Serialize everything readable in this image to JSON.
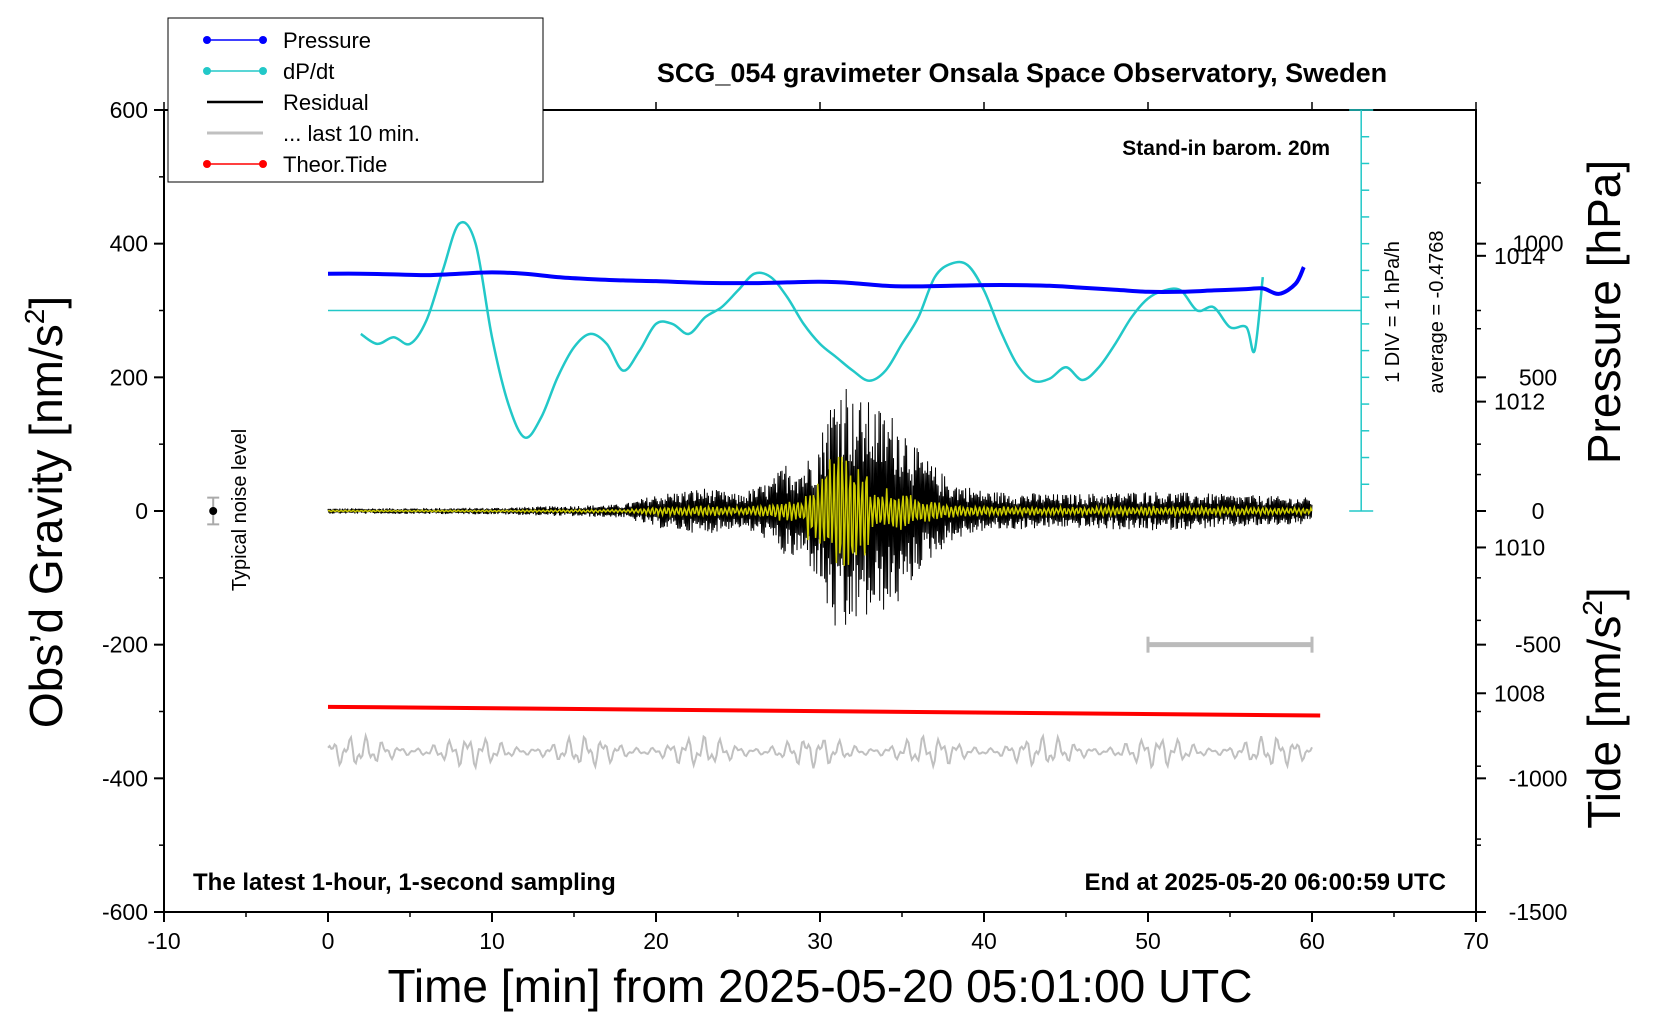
{
  "chart_data": {
    "type": "line",
    "title": "SCG_054 gravimeter Onsala Space Observatory, Sweden",
    "xlabel": "Time [min] from 2025-05-20 05:01:00 UTC",
    "ylabel_left": "Obs’d Gravity [nm/s",
    "ylabel_left_sup": "2",
    "ylabel_left_end": "]",
    "ylabel_right_top": "Pressure [hPa]",
    "ylabel_right_bottom": "Tide [nm/s",
    "ylabel_right_bottom_sup": "2",
    "ylabel_right_bottom_end": "]",
    "xlim": [
      -10,
      70
    ],
    "ylim_left": [
      -600,
      600
    ],
    "xticks": [
      -10,
      0,
      10,
      20,
      30,
      40,
      50,
      60,
      70
    ],
    "xtick_labels": [
      "-10",
      "0",
      "10",
      "20",
      "30",
      "40",
      "50",
      "60",
      "70"
    ],
    "yticks_left": [
      -600,
      -400,
      -200,
      0,
      200,
      400,
      600
    ],
    "ytick_labels_left": [
      "-600",
      "-400",
      "-200",
      "0",
      "200",
      "400",
      "600"
    ],
    "pressure_axis": {
      "ticks": [
        1008,
        1010,
        1012,
        1014
      ],
      "labels": [
        "1008",
        "1010",
        "1012",
        "1014"
      ]
    },
    "tide_axis": {
      "ticks": [
        -1500,
        -1000,
        -500,
        0,
        500,
        1000
      ],
      "labels": [
        "-1500",
        "-1000",
        "-500",
        "0",
        "500",
        "1000"
      ]
    },
    "annotations": {
      "barometer": "Stand-in barom. 20m",
      "div_label": "1 DIV = 1 hPa/h",
      "average_label": "average = -0.4768",
      "noise_label": "Typical noise level",
      "bottom_left": "The latest 1-hour, 1-second sampling",
      "bottom_right": "End at 2025-05-20 06:00:59 UTC"
    },
    "legend": [
      {
        "label": "Pressure",
        "color": "#0000ff",
        "marker": true
      },
      {
        "label": "dP/dt",
        "color": "#22c8c8",
        "marker": true
      },
      {
        "label": "Residual",
        "color": "#000000",
        "marker": false
      },
      {
        "label": "... last 10 min.",
        "color": "#c0c0c0",
        "marker": false
      },
      {
        "label": "Theor.Tide",
        "color": "#ff0000",
        "marker": true
      }
    ],
    "legend_position": "top-left",
    "colors": {
      "pressure": "#0000ff",
      "dpdt": "#22c8c8",
      "residual": "#000000",
      "last10": "#c0c0c0",
      "tide": "#ff0000",
      "overlay": "#cccc00"
    },
    "series": [
      {
        "name": "Pressure",
        "axis": "gravity-equivalent nm/s2",
        "x": [
          0,
          2,
          4,
          6,
          8,
          10,
          12,
          14,
          16,
          18,
          20,
          22,
          24,
          26,
          28,
          30,
          32,
          34,
          36,
          38,
          40,
          42,
          44,
          46,
          48,
          50,
          52,
          54,
          56,
          57,
          58,
          59,
          59.5
        ],
        "y": [
          355,
          355,
          354,
          353,
          355,
          357,
          355,
          350,
          347,
          345,
          344,
          342,
          341,
          341,
          342,
          343,
          341,
          337,
          336,
          337,
          338,
          338,
          337,
          334,
          331,
          328,
          328,
          330,
          332,
          333,
          325,
          340,
          365
        ]
      },
      {
        "name": "dP/dt",
        "axis": "gravity-equivalent nm/s2",
        "x": [
          2,
          3,
          4,
          5,
          6,
          7,
          8,
          9,
          10,
          11,
          12,
          13,
          14,
          15,
          16,
          17,
          18,
          19,
          20,
          21,
          22,
          23,
          24,
          25,
          26,
          27,
          28,
          29,
          30,
          31,
          32,
          33,
          34,
          35,
          36,
          37,
          38,
          39,
          40,
          41,
          42,
          43,
          44,
          45,
          46,
          47,
          48,
          49,
          50,
          51,
          52,
          53,
          54,
          55,
          56,
          56.5,
          57
        ],
        "y": [
          265,
          250,
          260,
          250,
          285,
          360,
          430,
          400,
          260,
          160,
          110,
          140,
          200,
          245,
          265,
          250,
          210,
          240,
          280,
          280,
          265,
          290,
          305,
          330,
          355,
          350,
          320,
          280,
          250,
          230,
          210,
          195,
          210,
          250,
          290,
          350,
          370,
          368,
          330,
          270,
          220,
          195,
          198,
          215,
          196,
          215,
          250,
          290,
          318,
          330,
          330,
          300,
          305,
          275,
          275,
          240,
          350
        ]
      },
      {
        "name": "dP/dt baseline",
        "x": [
          0,
          63
        ],
        "y": [
          300,
          300
        ]
      },
      {
        "name": "Residual",
        "envelope_x": [
          0,
          10,
          18,
          20,
          23,
          25,
          27,
          28,
          29,
          30,
          30.5,
          31,
          31.5,
          32,
          33,
          34,
          35,
          36,
          38,
          40,
          45,
          50,
          55,
          60
        ],
        "envelope_amp": [
          4,
          5,
          10,
          25,
          35,
          25,
          45,
          75,
          70,
          110,
          160,
          190,
          210,
          170,
          165,
          150,
          140,
          90,
          45,
          30,
          25,
          30,
          25,
          20
        ]
      },
      {
        "name": "... last 10 min.",
        "x_range": [
          0,
          60
        ],
        "center": -360,
        "amplitude": 25
      },
      {
        "name": "Theor.Tide",
        "x": [
          0,
          60.5
        ],
        "y": [
          -293,
          -306
        ]
      }
    ],
    "noise_bar": {
      "x": -7,
      "y": 0,
      "err": 20
    },
    "scale_bar": {
      "x0": 50,
      "x1": 60,
      "y": -200
    },
    "ylim_pressure": [
      1005,
      1016
    ],
    "ylim_tide": [
      -1500,
      1500
    ]
  }
}
